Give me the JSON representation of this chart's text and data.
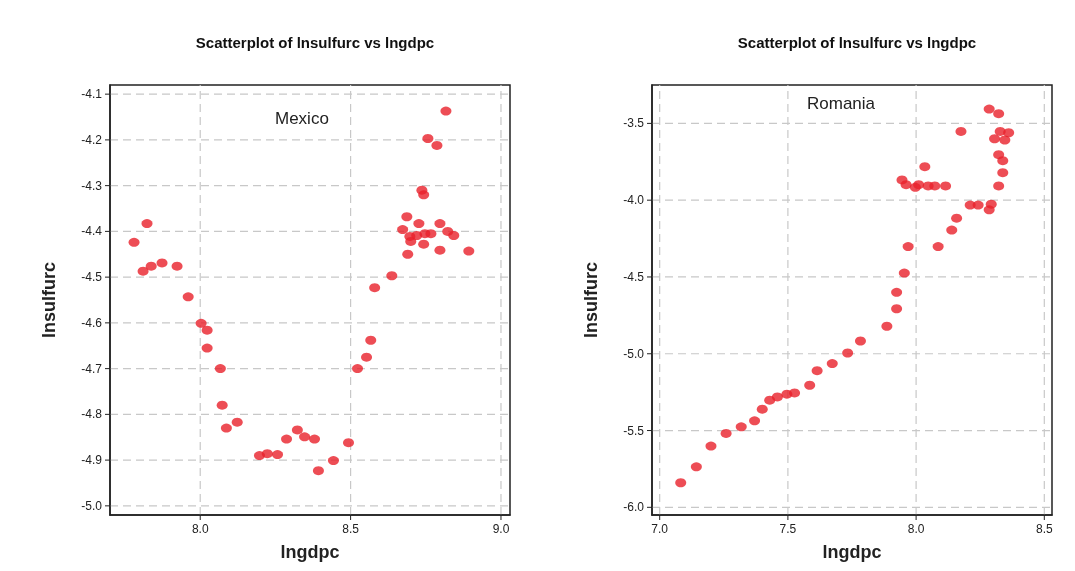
{
  "chart_data": [
    {
      "type": "scatter",
      "title": "Scatterplot of lnsulfurc vs lngdpc",
      "xlabel": "lngdpc",
      "ylabel": "lnsulfurc",
      "annotations": [
        "Mexico"
      ],
      "marker": "circle",
      "grid": true,
      "xlim": [
        7.7,
        9.03
      ],
      "xticks": [
        {
          "value": 8,
          "label": "8.0"
        },
        {
          "value": 8.5,
          "label": "8.5"
        },
        {
          "value": 9,
          "label": "9.0"
        }
      ],
      "ylim": [
        -5.02,
        -4.08
      ],
      "yticks": [
        -4.1,
        -4.2,
        -4.3,
        -4.4,
        -4.5,
        -4.6,
        -4.7,
        -4.8,
        -4.9,
        {
          "value": -5,
          "label": "-5.0"
        }
      ],
      "series": [
        {
          "color": "#e8202a",
          "x": [
            7.78,
            7.823,
            7.81,
            7.837,
            7.873,
            7.923,
            7.96,
            8.003,
            8.023,
            8.023,
            8.067,
            8.073,
            8.087,
            8.123,
            8.197,
            8.223,
            8.257,
            8.287,
            8.323,
            8.347,
            8.38,
            8.393,
            8.443,
            8.493,
            8.523,
            8.553,
            8.567,
            8.58,
            8.637,
            8.673,
            8.687,
            8.727,
            8.797,
            8.69,
            8.697,
            8.7,
            8.72,
            8.747,
            8.767,
            8.743,
            8.797,
            8.823,
            8.843,
            8.893,
            8.737,
            8.743,
            8.757,
            8.787,
            8.817
          ],
          "values": [
            -4.424,
            -4.383,
            -4.487,
            -4.476,
            -4.469,
            -4.476,
            -4.543,
            -4.601,
            -4.616,
            -4.655,
            -4.7,
            -4.78,
            -4.83,
            -4.817,
            -4.89,
            -4.886,
            -4.888,
            -4.854,
            -4.834,
            -4.849,
            -4.854,
            -4.923,
            -4.901,
            -4.862,
            -4.7,
            -4.675,
            -4.638,
            -4.523,
            -4.497,
            -4.396,
            -4.368,
            -4.383,
            -4.383,
            -4.45,
            -4.411,
            -4.422,
            -4.409,
            -4.405,
            -4.405,
            -4.428,
            -4.441,
            -4.4,
            -4.409,
            -4.443,
            -4.31,
            -4.32,
            -4.197,
            -4.212,
            -4.137
          ]
        }
      ]
    },
    {
      "type": "scatter",
      "title": "Scatterplot of lnsulfurc vs lngdpc",
      "xlabel": "lngdpc",
      "ylabel": "lnsulfurc",
      "annotations": [
        "Romania"
      ],
      "marker": "circle",
      "grid": true,
      "xlim": [
        6.97,
        8.53
      ],
      "xticks": [
        {
          "value": 7,
          "label": "7.0"
        },
        {
          "value": 7.5,
          "label": "7.5"
        },
        {
          "value": 8,
          "label": "8.0"
        },
        {
          "value": 8.5,
          "label": "8.5"
        }
      ],
      "ylim": [
        -6.05,
        -3.25
      ],
      "yticks": [
        -3.5,
        {
          "value": -4,
          "label": "-4.0"
        },
        -4.5,
        {
          "value": -5,
          "label": "-5.0"
        },
        -5.5,
        {
          "value": -6,
          "label": "-6.0"
        }
      ],
      "series": [
        {
          "color": "#e8202a",
          "x": [
            7.082,
            7.143,
            7.2,
            7.259,
            7.318,
            7.37,
            7.4,
            7.429,
            7.459,
            7.496,
            7.526,
            7.585,
            7.614,
            7.673,
            7.733,
            7.783,
            7.886,
            7.924,
            7.924,
            7.954,
            7.969,
            7.945,
            7.961,
            7.997,
            8.01,
            8.047,
            8.073,
            8.115,
            8.034,
            8.086,
            8.139,
            8.158,
            8.175,
            8.211,
            8.242,
            8.285,
            8.293,
            8.285,
            8.322,
            8.306,
            8.328,
            8.361,
            8.346,
            8.322,
            8.338,
            8.338,
            8.322
          ],
          "values": [
            -5.84,
            -5.736,
            -5.601,
            -5.519,
            -5.476,
            -5.437,
            -5.361,
            -5.302,
            -5.281,
            -5.263,
            -5.255,
            -5.205,
            -5.11,
            -5.064,
            -4.995,
            -4.917,
            -4.821,
            -4.707,
            -4.6,
            -4.475,
            -4.302,
            -3.868,
            -3.899,
            -3.916,
            -3.899,
            -3.907,
            -3.907,
            -3.907,
            -3.782,
            -4.302,
            -4.195,
            -4.117,
            -3.552,
            -4.032,
            -4.032,
            -4.063,
            -4.026,
            -3.407,
            -3.437,
            -3.6,
            -3.552,
            -3.561,
            -3.608,
            -3.704,
            -3.743,
            -3.821,
            -3.907
          ]
        }
      ]
    }
  ]
}
